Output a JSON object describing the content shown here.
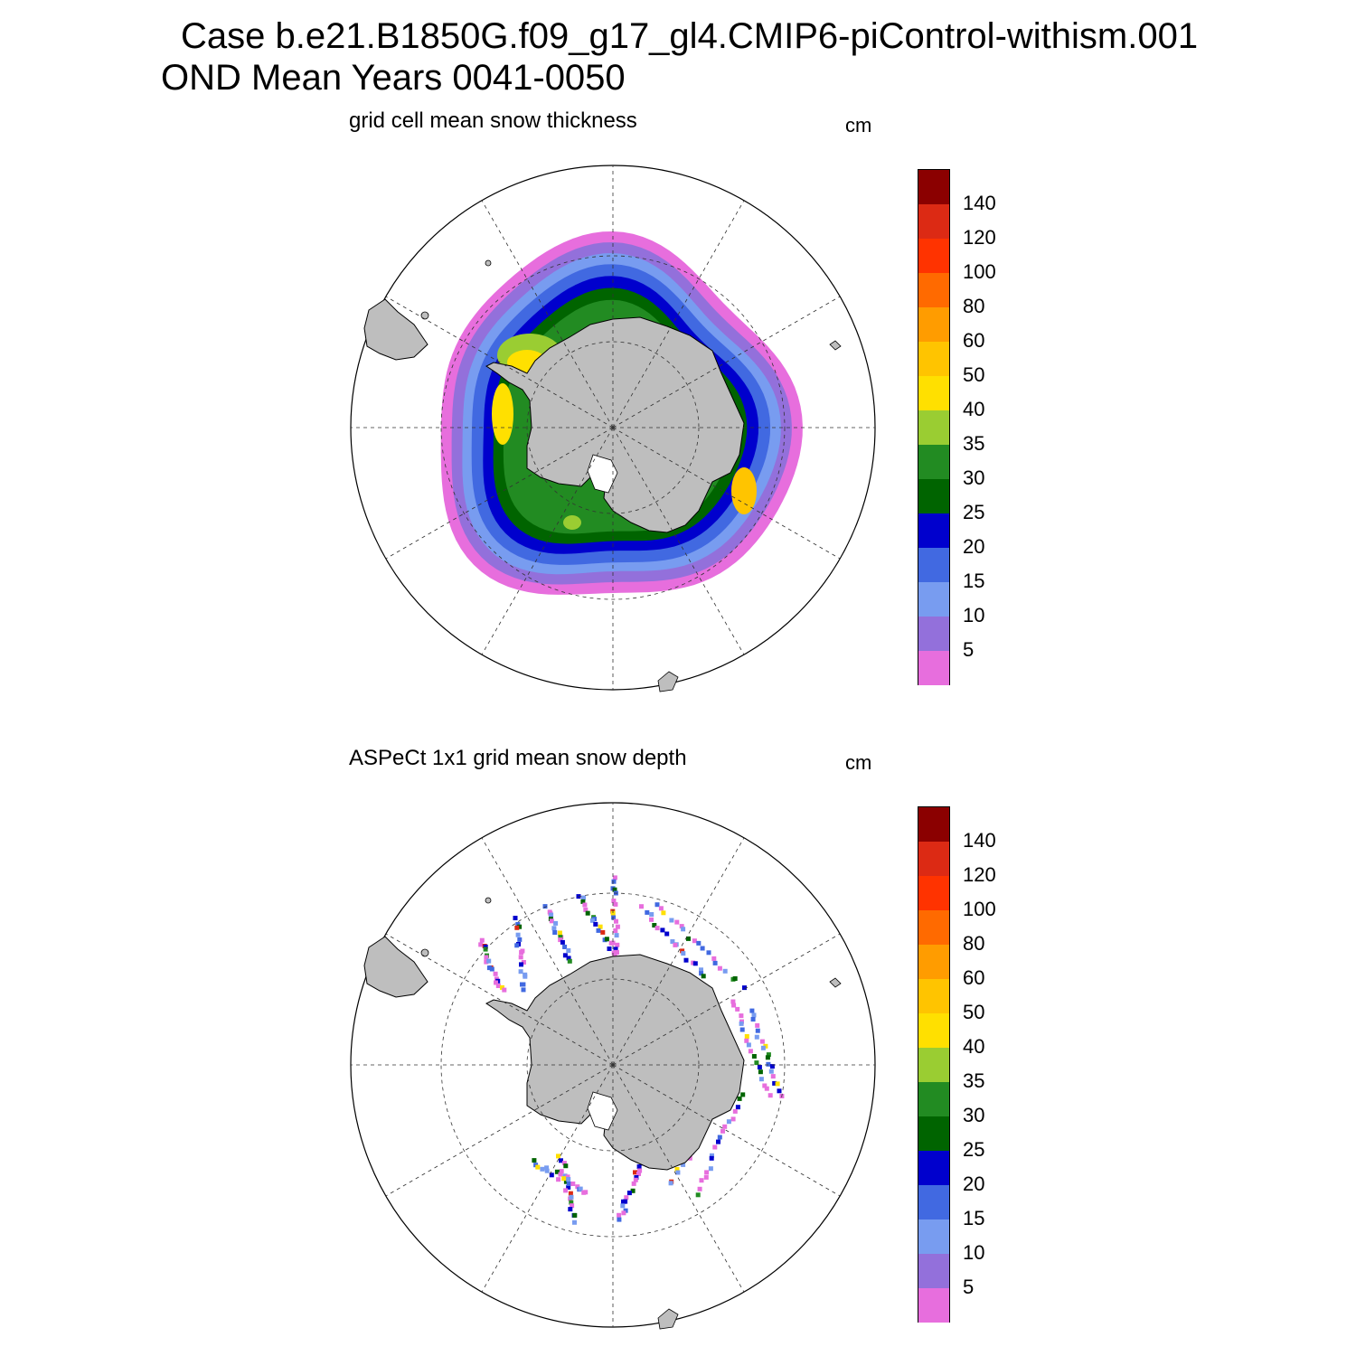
{
  "title": {
    "line1": "Case b.e21.B1850G.f09_g17_gl4.CMIP6-piControl-withism.001",
    "line2": "OND Mean   Years 0041-0050"
  },
  "colors": {
    "land": "#bebebe",
    "levels": [
      "#e76edd",
      "#9370db",
      "#789cf0",
      "#4169e1",
      "#0000cd",
      "#006400",
      "#228b22",
      "#9acd32",
      "#ffe000",
      "#ffc400",
      "#ff9c00",
      "#ff6a00",
      "#ff3300",
      "#dc2a14",
      "#8b0000"
    ]
  },
  "colorbar_labels": [
    "5",
    "10",
    "15",
    "20",
    "25",
    "30",
    "35",
    "40",
    "50",
    "60",
    "80",
    "100",
    "120",
    "140"
  ],
  "panels": [
    {
      "title": "grid cell mean snow thickness",
      "units": "cm",
      "chart_data": {
        "type": "heatmap",
        "title": "grid cell mean snow thickness",
        "units": "cm",
        "projection": "south polar stereographic",
        "levels": [
          5,
          10,
          15,
          20,
          25,
          30,
          35,
          40,
          50,
          60,
          80,
          100,
          120,
          140
        ],
        "field": "model snow thickness on sea ice, gridded",
        "grid": true
      }
    },
    {
      "title": "ASPeCt 1x1 grid mean snow depth",
      "units": "cm",
      "chart_data": {
        "type": "heatmap",
        "title": "ASPeCt 1x1 grid mean snow depth",
        "units": "cm",
        "projection": "south polar stereographic",
        "levels": [
          5,
          10,
          15,
          20,
          25,
          30,
          35,
          40,
          50,
          60,
          80,
          100,
          120,
          140
        ],
        "field": "ship-track observations along transects",
        "grid": true
      }
    }
  ]
}
